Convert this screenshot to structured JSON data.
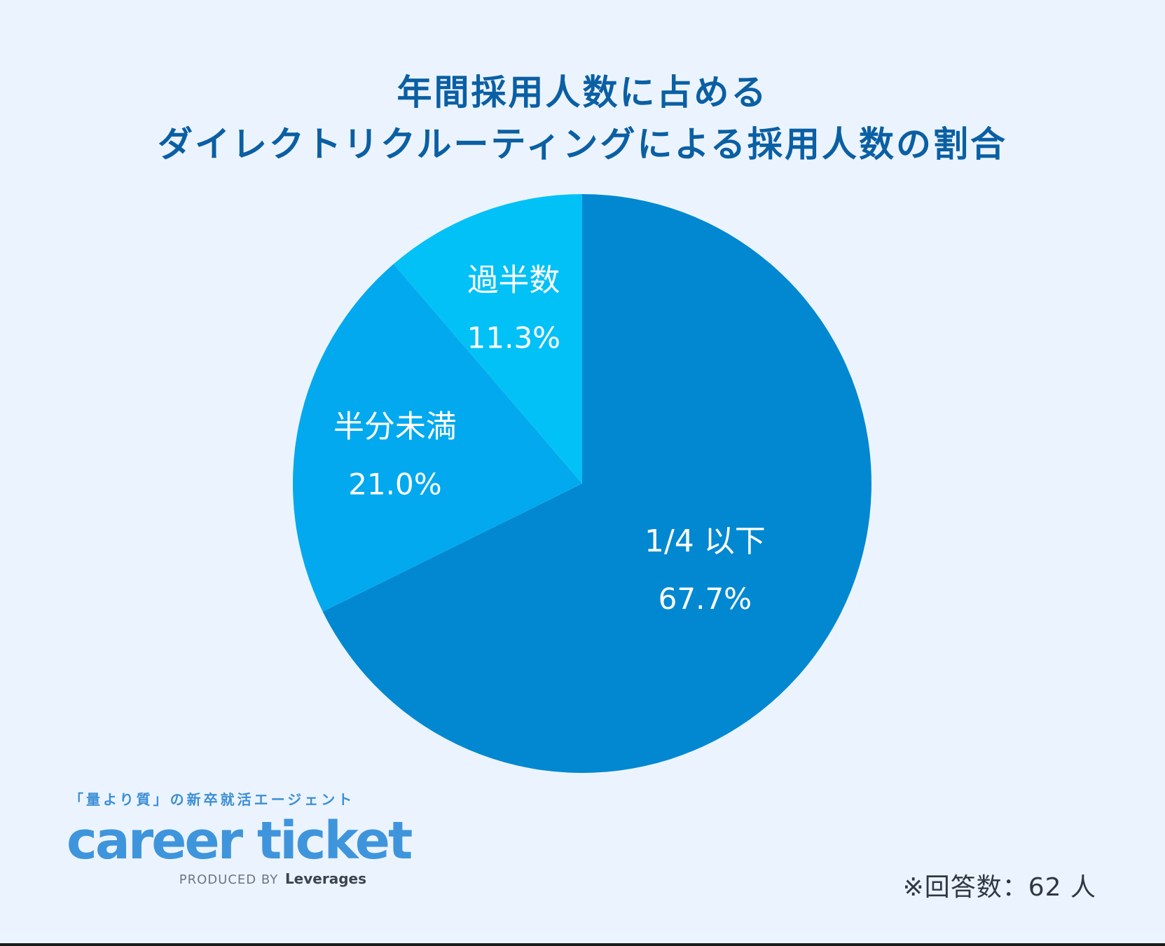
{
  "title": {
    "line1": "年間採用人数に占める",
    "line2": "ダイレクトリクルーティングによる採用人数の割合"
  },
  "colors": {
    "background": "#ebf4fe",
    "title": "#0b5fa3",
    "slice_large": "#0288d1",
    "slice_medium": "#03a9ee",
    "slice_small": "#02c1f6"
  },
  "chart_data": {
    "type": "pie",
    "categories": [
      "1/4 以下",
      "半分未満",
      "過半数"
    ],
    "values": [
      67.7,
      21.0,
      11.3
    ],
    "value_labels": [
      "67.7%",
      "21.0%",
      "11.3%"
    ],
    "title": "年間採用人数に占める ダイレクトリクルーティングによる採用人数の割合"
  },
  "brand": {
    "tagline": "「量より質」の新卒就活エージェント",
    "logo": "career ticket",
    "produced_by": "PRODUCED BY",
    "company": "Leverages"
  },
  "footnote": "※回答数：62 人"
}
